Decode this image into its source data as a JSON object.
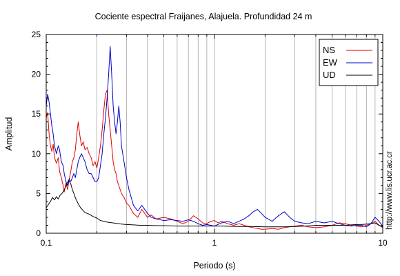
{
  "chart_data": {
    "type": "line",
    "title": "Cociente espectral Fraijanes, Alajuela. Profundidad 24 m",
    "xlabel": "Periodo (s)",
    "ylabel": "Amplitud",
    "side_text": "http://www.lis.ucr.ac.cr",
    "x_scale": "log",
    "xlim": [
      0.1,
      10
    ],
    "ylim": [
      0,
      25
    ],
    "x_ticks": [
      0.1,
      1,
      10
    ],
    "x_tick_labels": [
      "0.1",
      "1",
      "10"
    ],
    "y_ticks": [
      0,
      5,
      10,
      15,
      20,
      25
    ],
    "y_tick_labels": [
      "0",
      "5",
      "10",
      "15",
      "20",
      "25"
    ],
    "grid": "vertical log minor lines",
    "legend_placement": "top-right",
    "series": [
      {
        "name": "NS",
        "color": "#e00000",
        "points": [
          [
            0.1,
            14.5
          ],
          [
            0.102,
            15.2
          ],
          [
            0.104,
            12.5
          ],
          [
            0.106,
            11
          ],
          [
            0.108,
            10.3
          ],
          [
            0.11,
            11.2
          ],
          [
            0.112,
            9.5
          ],
          [
            0.115,
            8.8
          ],
          [
            0.118,
            9.5
          ],
          [
            0.12,
            7.8
          ],
          [
            0.123,
            7
          ],
          [
            0.126,
            6
          ],
          [
            0.128,
            5.2
          ],
          [
            0.131,
            6.3
          ],
          [
            0.134,
            5.5
          ],
          [
            0.137,
            6.8
          ],
          [
            0.14,
            7.8
          ],
          [
            0.143,
            9
          ],
          [
            0.146,
            9.5
          ],
          [
            0.149,
            10.5
          ],
          [
            0.152,
            12.5
          ],
          [
            0.155,
            14
          ],
          [
            0.158,
            12.5
          ],
          [
            0.162,
            11
          ],
          [
            0.166,
            11.5
          ],
          [
            0.17,
            10.5
          ],
          [
            0.175,
            10.8
          ],
          [
            0.18,
            10
          ],
          [
            0.185,
            9.5
          ],
          [
            0.19,
            8.5
          ],
          [
            0.195,
            9
          ],
          [
            0.2,
            8.2
          ],
          [
            0.205,
            9.5
          ],
          [
            0.21,
            11
          ],
          [
            0.215,
            13
          ],
          [
            0.22,
            15.5
          ],
          [
            0.225,
            17.5
          ],
          [
            0.23,
            18
          ],
          [
            0.235,
            15
          ],
          [
            0.24,
            13
          ],
          [
            0.245,
            11
          ],
          [
            0.25,
            9
          ],
          [
            0.255,
            8
          ],
          [
            0.26,
            7.5
          ],
          [
            0.265,
            6.5
          ],
          [
            0.27,
            6
          ],
          [
            0.28,
            5
          ],
          [
            0.29,
            4.5
          ],
          [
            0.3,
            3.8
          ],
          [
            0.31,
            3.5
          ],
          [
            0.32,
            3
          ],
          [
            0.33,
            2.5
          ],
          [
            0.35,
            2
          ],
          [
            0.37,
            3
          ],
          [
            0.4,
            2
          ],
          [
            0.42,
            2.3
          ],
          [
            0.45,
            1.8
          ],
          [
            0.5,
            2
          ],
          [
            0.55,
            1.8
          ],
          [
            0.6,
            1.5
          ],
          [
            0.65,
            1.2
          ],
          [
            0.7,
            1.5
          ],
          [
            0.75,
            2.2
          ],
          [
            0.8,
            1.8
          ],
          [
            0.85,
            1.3
          ],
          [
            0.9,
            1.2
          ],
          [
            0.95,
            1.5
          ],
          [
            1,
            1.6
          ],
          [
            1.05,
            1.3
          ],
          [
            1.1,
            1.5
          ],
          [
            1.2,
            1.2
          ],
          [
            1.3,
            1
          ],
          [
            1.4,
            1.2
          ],
          [
            1.5,
            1
          ],
          [
            1.6,
            0.8
          ],
          [
            1.7,
            0.7
          ],
          [
            1.8,
            0.6
          ],
          [
            1.9,
            0.5
          ],
          [
            2,
            0.5
          ],
          [
            2.2,
            0.6
          ],
          [
            2.4,
            0.5
          ],
          [
            2.6,
            0.7
          ],
          [
            2.8,
            0.8
          ],
          [
            3,
            0.9
          ],
          [
            3.3,
            1
          ],
          [
            3.6,
            0.8
          ],
          [
            4,
            0.7
          ],
          [
            4.5,
            0.8
          ],
          [
            5,
            1
          ],
          [
            5.5,
            1.3
          ],
          [
            6,
            1.2
          ],
          [
            6.5,
            1
          ],
          [
            7,
            0.9
          ],
          [
            7.5,
            0.8
          ],
          [
            8,
            1
          ],
          [
            8.5,
            1.2
          ],
          [
            9,
            1.5
          ],
          [
            9.5,
            1
          ],
          [
            10,
            0.7
          ]
        ]
      },
      {
        "name": "EW",
        "color": "#0000c8",
        "points": [
          [
            0.1,
            16
          ],
          [
            0.102,
            17.5
          ],
          [
            0.104,
            16.5
          ],
          [
            0.106,
            15
          ],
          [
            0.108,
            13.5
          ],
          [
            0.11,
            12.5
          ],
          [
            0.112,
            11
          ],
          [
            0.115,
            10
          ],
          [
            0.118,
            11
          ],
          [
            0.12,
            10.5
          ],
          [
            0.123,
            9
          ],
          [
            0.126,
            8.5
          ],
          [
            0.128,
            7.5
          ],
          [
            0.131,
            6.5
          ],
          [
            0.134,
            6
          ],
          [
            0.137,
            6.8
          ],
          [
            0.14,
            6.5
          ],
          [
            0.143,
            7
          ],
          [
            0.146,
            7.5
          ],
          [
            0.149,
            7
          ],
          [
            0.152,
            8
          ],
          [
            0.155,
            9
          ],
          [
            0.158,
            9.5
          ],
          [
            0.162,
            10
          ],
          [
            0.166,
            9.5
          ],
          [
            0.17,
            9
          ],
          [
            0.175,
            8
          ],
          [
            0.18,
            7.5
          ],
          [
            0.185,
            7.5
          ],
          [
            0.19,
            7
          ],
          [
            0.195,
            6.5
          ],
          [
            0.2,
            6.5
          ],
          [
            0.205,
            7
          ],
          [
            0.21,
            8.5
          ],
          [
            0.215,
            10
          ],
          [
            0.22,
            12.5
          ],
          [
            0.225,
            14.5
          ],
          [
            0.23,
            17
          ],
          [
            0.235,
            20
          ],
          [
            0.24,
            23.5
          ],
          [
            0.245,
            20
          ],
          [
            0.25,
            16
          ],
          [
            0.255,
            14
          ],
          [
            0.26,
            12.5
          ],
          [
            0.265,
            14
          ],
          [
            0.27,
            16
          ],
          [
            0.275,
            14
          ],
          [
            0.28,
            11
          ],
          [
            0.29,
            9
          ],
          [
            0.3,
            7
          ],
          [
            0.31,
            5.5
          ],
          [
            0.32,
            4.5
          ],
          [
            0.33,
            3.5
          ],
          [
            0.35,
            2.8
          ],
          [
            0.37,
            3.5
          ],
          [
            0.4,
            2.5
          ],
          [
            0.42,
            2
          ],
          [
            0.45,
            1.8
          ],
          [
            0.5,
            1.6
          ],
          [
            0.55,
            1.7
          ],
          [
            0.6,
            1.6
          ],
          [
            0.65,
            1.5
          ],
          [
            0.7,
            1.7
          ],
          [
            0.75,
            1.5
          ],
          [
            0.8,
            1.2
          ],
          [
            0.85,
            1
          ],
          [
            0.9,
            1.1
          ],
          [
            0.95,
            1
          ],
          [
            1,
            0.9
          ],
          [
            1.05,
            1.1
          ],
          [
            1.1,
            1.3
          ],
          [
            1.2,
            1.5
          ],
          [
            1.3,
            1.2
          ],
          [
            1.4,
            1.5
          ],
          [
            1.5,
            1.8
          ],
          [
            1.6,
            2.2
          ],
          [
            1.7,
            2.7
          ],
          [
            1.8,
            3
          ],
          [
            1.9,
            2.5
          ],
          [
            2,
            2
          ],
          [
            2.2,
            1.5
          ],
          [
            2.4,
            2.2
          ],
          [
            2.6,
            2.7
          ],
          [
            2.8,
            2
          ],
          [
            3,
            1.5
          ],
          [
            3.3,
            1.3
          ],
          [
            3.6,
            1.2
          ],
          [
            4,
            1.5
          ],
          [
            4.5,
            1.3
          ],
          [
            5,
            1.5
          ],
          [
            5.5,
            1.2
          ],
          [
            6,
            1
          ],
          [
            6.5,
            0.9
          ],
          [
            7,
            1
          ],
          [
            7.5,
            1
          ],
          [
            8,
            0.8
          ],
          [
            8.5,
            1.2
          ],
          [
            9,
            2
          ],
          [
            9.5,
            1.5
          ],
          [
            10,
            0.9
          ]
        ]
      },
      {
        "name": "UD",
        "color": "#000000",
        "points": [
          [
            0.1,
            3.2
          ],
          [
            0.103,
            3.6
          ],
          [
            0.106,
            4
          ],
          [
            0.109,
            4.5
          ],
          [
            0.112,
            4.2
          ],
          [
            0.115,
            4.6
          ],
          [
            0.118,
            4.3
          ],
          [
            0.121,
            4.8
          ],
          [
            0.124,
            5
          ],
          [
            0.127,
            5.3
          ],
          [
            0.13,
            5.8
          ],
          [
            0.133,
            6.3
          ],
          [
            0.136,
            6.7
          ],
          [
            0.14,
            6.2
          ],
          [
            0.143,
            5.5
          ],
          [
            0.146,
            5
          ],
          [
            0.15,
            4.3
          ],
          [
            0.155,
            3.7
          ],
          [
            0.16,
            3.2
          ],
          [
            0.165,
            2.9
          ],
          [
            0.17,
            2.6
          ],
          [
            0.18,
            2.4
          ],
          [
            0.19,
            2.1
          ],
          [
            0.2,
            1.9
          ],
          [
            0.21,
            1.6
          ],
          [
            0.22,
            1.5
          ],
          [
            0.23,
            1.4
          ],
          [
            0.24,
            1.35
          ],
          [
            0.26,
            1.25
          ],
          [
            0.28,
            1.15
          ],
          [
            0.3,
            1.1
          ],
          [
            0.33,
            1.05
          ],
          [
            0.36,
            1
          ],
          [
            0.4,
            1
          ],
          [
            0.45,
            0.95
          ],
          [
            0.5,
            0.95
          ],
          [
            0.6,
            0.9
          ],
          [
            0.7,
            0.9
          ],
          [
            0.8,
            0.9
          ],
          [
            0.9,
            0.9
          ],
          [
            1,
            0.9
          ],
          [
            1.1,
            0.9
          ],
          [
            1.2,
            0.88
          ],
          [
            1.4,
            0.85
          ],
          [
            1.6,
            0.85
          ],
          [
            1.8,
            0.82
          ],
          [
            2,
            0.8
          ],
          [
            2.3,
            0.8
          ],
          [
            2.6,
            0.8
          ],
          [
            3,
            0.85
          ],
          [
            3.5,
            0.9
          ],
          [
            4,
            1
          ],
          [
            4.5,
            1
          ],
          [
            5,
            1
          ],
          [
            5.5,
            1
          ],
          [
            6,
            1
          ],
          [
            6.5,
            1.05
          ],
          [
            7,
            1.1
          ],
          [
            7.5,
            1.1
          ],
          [
            8,
            1.15
          ],
          [
            8.5,
            1.2
          ],
          [
            9,
            1.3
          ],
          [
            9.5,
            1
          ],
          [
            10,
            0.8
          ]
        ]
      }
    ]
  }
}
